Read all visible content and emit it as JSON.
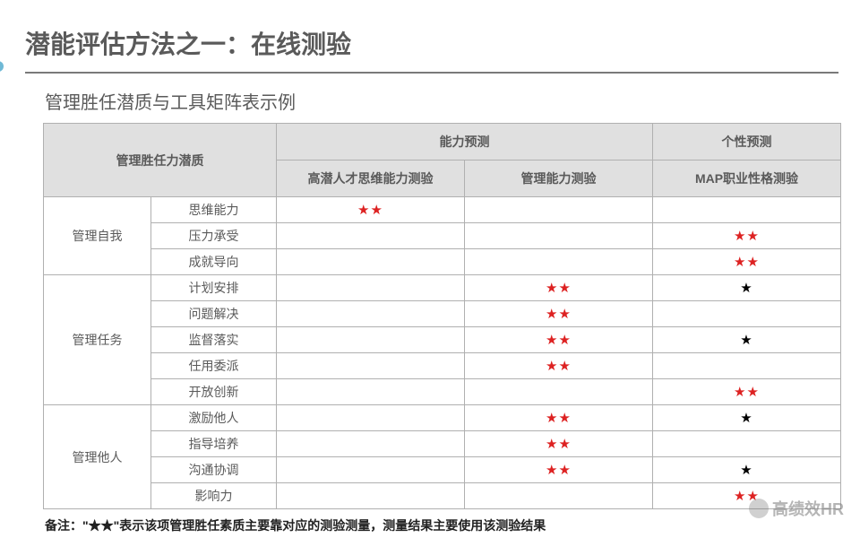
{
  "title": "潜能评估方法之一：在线测验",
  "subtitle": "管理胜任潜质与工具矩阵表示例",
  "header": {
    "corner": "管理胜任力潜质",
    "group_ability": "能力预测",
    "group_personality": "个性预测",
    "col_thinking": "高潜人才思维能力测验",
    "col_mgmt": "管理能力测验",
    "col_map": "MAP职业性格测验"
  },
  "groups": [
    {
      "name": "管理自我",
      "rows": [
        {
          "label": "思维能力",
          "c1": "red",
          "c2": "",
          "c3": ""
        },
        {
          "label": "压力承受",
          "c1": "",
          "c2": "",
          "c3": "red"
        },
        {
          "label": "成就导向",
          "c1": "",
          "c2": "",
          "c3": "red"
        }
      ]
    },
    {
      "name": "管理任务",
      "rows": [
        {
          "label": "计划安排",
          "c1": "",
          "c2": "red",
          "c3": "black"
        },
        {
          "label": "问题解决",
          "c1": "",
          "c2": "red",
          "c3": ""
        },
        {
          "label": "监督落实",
          "c1": "",
          "c2": "red",
          "c3": "black"
        },
        {
          "label": "任用委派",
          "c1": "",
          "c2": "red",
          "c3": ""
        },
        {
          "label": "开放创新",
          "c1": "",
          "c2": "",
          "c3": "red"
        }
      ]
    },
    {
      "name": "管理他人",
      "rows": [
        {
          "label": "激励他人",
          "c1": "",
          "c2": "red",
          "c3": "black"
        },
        {
          "label": "指导培养",
          "c1": "",
          "c2": "red",
          "c3": ""
        },
        {
          "label": "沟通协调",
          "c1": "",
          "c2": "red",
          "c3": "black"
        },
        {
          "label": "影响力",
          "c1": "",
          "c2": "",
          "c3": "red"
        }
      ]
    }
  ],
  "stars": {
    "red": "★★",
    "black": "★"
  },
  "footnote": "备注：\"★★\"表示该项管理胜任素质主要靠对应的测验测量，测量结果主要使用该测验结果",
  "watermark": "高绩效HR",
  "colors": {
    "title": "#5a5a5a",
    "underline": "#7a7a7a",
    "dot": "#6fb9d6",
    "header_bg": "#e0e0e0",
    "border": "#b0b0b0",
    "star_red": "#d22",
    "star_black": "#000"
  }
}
